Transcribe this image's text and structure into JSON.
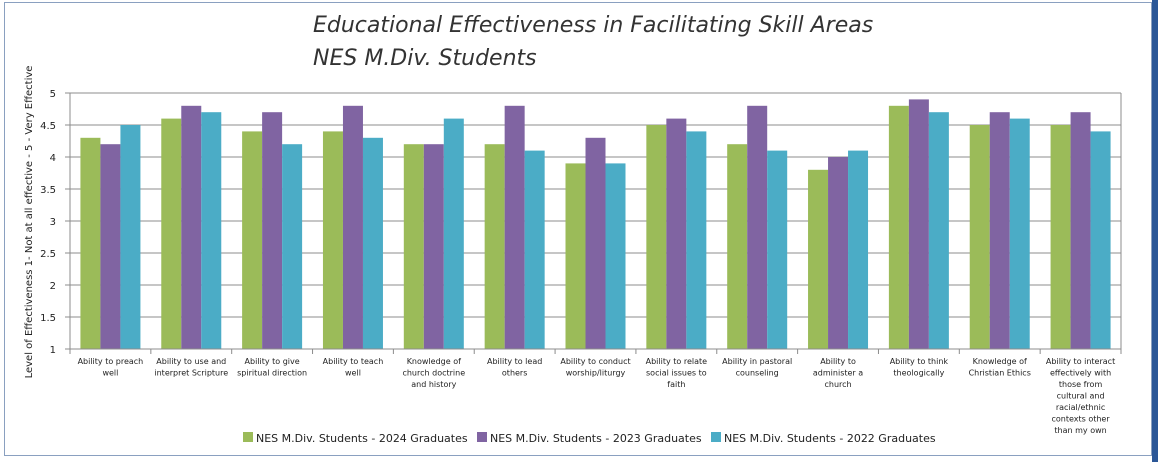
{
  "chart_data": {
    "type": "bar",
    "title": [
      "Educational Effectiveness in Facilitating Skill Areas",
      "NES M.Div. Students"
    ],
    "ylabel": "Level of Effectiveness 1- Not at all effective - 5 - Very Effective",
    "xlabel": "",
    "ylim": [
      1,
      5
    ],
    "yticks": [
      "1",
      "1.5",
      "2",
      "2.5",
      "3",
      "3.5",
      "4",
      "4.5",
      "5"
    ],
    "grid": true,
    "legend_position": "bottom",
    "categories": [
      [
        "Ability to preach",
        "well"
      ],
      [
        "Ability to use and",
        "interpret Scripture"
      ],
      [
        "Ability to give",
        "spiritual direction"
      ],
      [
        "Ability to teach",
        "well"
      ],
      [
        "Knowledge of",
        "church doctrine",
        "and history"
      ],
      [
        "Ability to lead",
        "others"
      ],
      [
        "Ability to conduct",
        "worship/liturgy"
      ],
      [
        "Ability to relate",
        "social issues to",
        "faith"
      ],
      [
        "Ability in pastoral",
        "counseling"
      ],
      [
        "Ability to",
        "administer a",
        "church"
      ],
      [
        "Ability to think",
        "theologically"
      ],
      [
        "Knowledge of",
        "Christian Ethics"
      ],
      [
        "Ability to interact",
        "effectively with",
        "those from",
        "cultural and",
        "racial/ethnic",
        "contexts other",
        "than my own"
      ]
    ],
    "series": [
      {
        "name": "NES M.Div. Students - 2024 Graduates",
        "color": "#9bbb59",
        "values": [
          4.3,
          4.6,
          4.4,
          4.4,
          4.2,
          4.2,
          3.9,
          4.5,
          4.2,
          3.8,
          4.8,
          4.5,
          4.5
        ]
      },
      {
        "name": "NES M.Div. Students - 2023 Graduates",
        "color": "#8064a2",
        "values": [
          4.2,
          4.8,
          4.7,
          4.8,
          4.2,
          4.8,
          4.3,
          4.6,
          4.8,
          4.0,
          4.9,
          4.7,
          4.7
        ]
      },
      {
        "name": "NES M.Div. Students - 2022 Graduates",
        "color": "#4bacc6",
        "values": [
          4.5,
          4.7,
          4.2,
          4.3,
          4.6,
          4.1,
          3.9,
          4.4,
          4.1,
          4.1,
          4.7,
          4.6,
          4.4
        ]
      }
    ]
  }
}
